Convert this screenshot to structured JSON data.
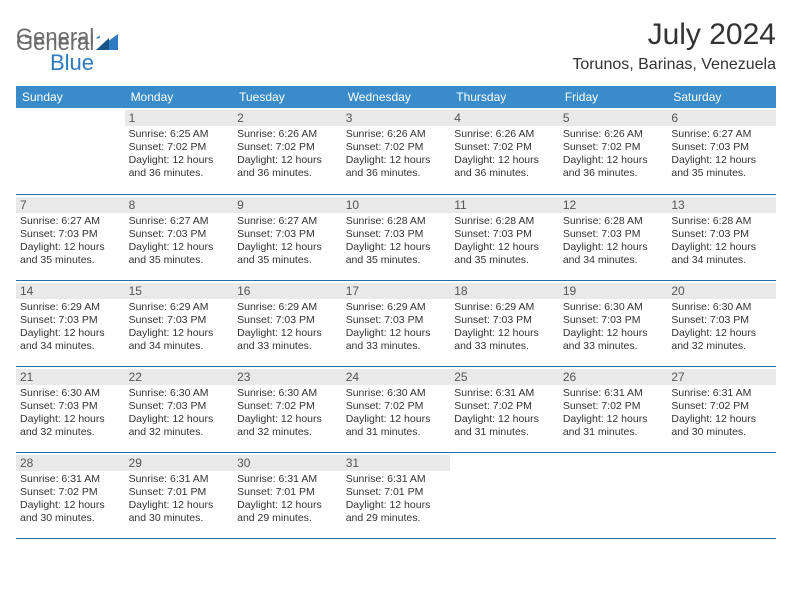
{
  "brand": {
    "general": "General",
    "blue": "Blue"
  },
  "title": {
    "month": "July 2024",
    "location": "Torunos, Barinas, Venezuela"
  },
  "colors": {
    "header_bg": "#3a8bc9",
    "header_fg": "#ffffff",
    "rule": "#2f6ca3",
    "logo_grey": "#6b6b6b",
    "logo_blue": "#2f7ac0",
    "dayheader_bg": "#e9e9e9"
  },
  "weekdays": [
    "Sunday",
    "Monday",
    "Tuesday",
    "Wednesday",
    "Thursday",
    "Friday",
    "Saturday"
  ],
  "start_offset": 1,
  "days": [
    {
      "n": 1,
      "sr": "6:25 AM",
      "ss": "7:02 PM",
      "dl": "12 hours and 36 minutes."
    },
    {
      "n": 2,
      "sr": "6:26 AM",
      "ss": "7:02 PM",
      "dl": "12 hours and 36 minutes."
    },
    {
      "n": 3,
      "sr": "6:26 AM",
      "ss": "7:02 PM",
      "dl": "12 hours and 36 minutes."
    },
    {
      "n": 4,
      "sr": "6:26 AM",
      "ss": "7:02 PM",
      "dl": "12 hours and 36 minutes."
    },
    {
      "n": 5,
      "sr": "6:26 AM",
      "ss": "7:02 PM",
      "dl": "12 hours and 36 minutes."
    },
    {
      "n": 6,
      "sr": "6:27 AM",
      "ss": "7:03 PM",
      "dl": "12 hours and 35 minutes."
    },
    {
      "n": 7,
      "sr": "6:27 AM",
      "ss": "7:03 PM",
      "dl": "12 hours and 35 minutes."
    },
    {
      "n": 8,
      "sr": "6:27 AM",
      "ss": "7:03 PM",
      "dl": "12 hours and 35 minutes."
    },
    {
      "n": 9,
      "sr": "6:27 AM",
      "ss": "7:03 PM",
      "dl": "12 hours and 35 minutes."
    },
    {
      "n": 10,
      "sr": "6:28 AM",
      "ss": "7:03 PM",
      "dl": "12 hours and 35 minutes."
    },
    {
      "n": 11,
      "sr": "6:28 AM",
      "ss": "7:03 PM",
      "dl": "12 hours and 35 minutes."
    },
    {
      "n": 12,
      "sr": "6:28 AM",
      "ss": "7:03 PM",
      "dl": "12 hours and 34 minutes."
    },
    {
      "n": 13,
      "sr": "6:28 AM",
      "ss": "7:03 PM",
      "dl": "12 hours and 34 minutes."
    },
    {
      "n": 14,
      "sr": "6:29 AM",
      "ss": "7:03 PM",
      "dl": "12 hours and 34 minutes."
    },
    {
      "n": 15,
      "sr": "6:29 AM",
      "ss": "7:03 PM",
      "dl": "12 hours and 34 minutes."
    },
    {
      "n": 16,
      "sr": "6:29 AM",
      "ss": "7:03 PM",
      "dl": "12 hours and 33 minutes."
    },
    {
      "n": 17,
      "sr": "6:29 AM",
      "ss": "7:03 PM",
      "dl": "12 hours and 33 minutes."
    },
    {
      "n": 18,
      "sr": "6:29 AM",
      "ss": "7:03 PM",
      "dl": "12 hours and 33 minutes."
    },
    {
      "n": 19,
      "sr": "6:30 AM",
      "ss": "7:03 PM",
      "dl": "12 hours and 33 minutes."
    },
    {
      "n": 20,
      "sr": "6:30 AM",
      "ss": "7:03 PM",
      "dl": "12 hours and 32 minutes."
    },
    {
      "n": 21,
      "sr": "6:30 AM",
      "ss": "7:03 PM",
      "dl": "12 hours and 32 minutes."
    },
    {
      "n": 22,
      "sr": "6:30 AM",
      "ss": "7:03 PM",
      "dl": "12 hours and 32 minutes."
    },
    {
      "n": 23,
      "sr": "6:30 AM",
      "ss": "7:02 PM",
      "dl": "12 hours and 32 minutes."
    },
    {
      "n": 24,
      "sr": "6:30 AM",
      "ss": "7:02 PM",
      "dl": "12 hours and 31 minutes."
    },
    {
      "n": 25,
      "sr": "6:31 AM",
      "ss": "7:02 PM",
      "dl": "12 hours and 31 minutes."
    },
    {
      "n": 26,
      "sr": "6:31 AM",
      "ss": "7:02 PM",
      "dl": "12 hours and 31 minutes."
    },
    {
      "n": 27,
      "sr": "6:31 AM",
      "ss": "7:02 PM",
      "dl": "12 hours and 30 minutes."
    },
    {
      "n": 28,
      "sr": "6:31 AM",
      "ss": "7:02 PM",
      "dl": "12 hours and 30 minutes."
    },
    {
      "n": 29,
      "sr": "6:31 AM",
      "ss": "7:01 PM",
      "dl": "12 hours and 30 minutes."
    },
    {
      "n": 30,
      "sr": "6:31 AM",
      "ss": "7:01 PM",
      "dl": "12 hours and 29 minutes."
    },
    {
      "n": 31,
      "sr": "6:31 AM",
      "ss": "7:01 PM",
      "dl": "12 hours and 29 minutes."
    }
  ],
  "labels": {
    "sunrise": "Sunrise:",
    "sunset": "Sunset:",
    "daylight": "Daylight:"
  }
}
